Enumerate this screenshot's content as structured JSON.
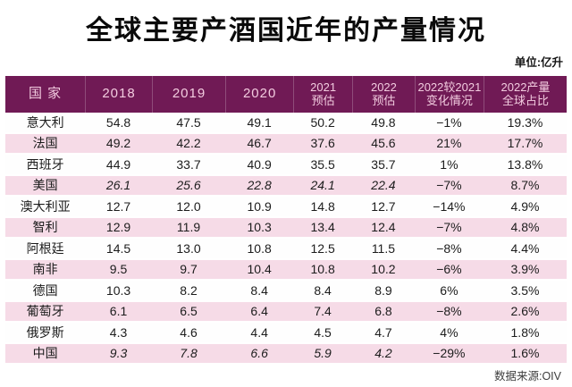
{
  "title": "全球主要产酒国近年的产量情况",
  "unit_label": "单位:亿升",
  "source_label": "数据来源:OIV",
  "colors": {
    "header_bg": "#701a55",
    "header_text": "#f2cbdf",
    "row_pink": "#f6dbe7",
    "row_white": "#fefefe",
    "text": "#1c1c1c"
  },
  "chart_data": {
    "type": "table",
    "title": "全球主要产酒国近年的产量情况",
    "unit": "亿升",
    "source": "OIV",
    "columns": [
      "国 家",
      "2018",
      "2019",
      "2020",
      "2021\n预估",
      "2022\n预估",
      "2022较2021\n变化情况",
      "2022产量\n全球占比"
    ],
    "rows": [
      {
        "country": "意大利",
        "values": [
          "54.8",
          "47.5",
          "49.1",
          "50.2",
          "49.8",
          "−1%",
          "19.3%"
        ],
        "italic": false
      },
      {
        "country": "法国",
        "values": [
          "49.2",
          "42.2",
          "46.7",
          "37.6",
          "45.6",
          "21%",
          "17.7%"
        ],
        "italic": false
      },
      {
        "country": "西班牙",
        "values": [
          "44.9",
          "33.7",
          "40.9",
          "35.5",
          "35.7",
          "1%",
          "13.8%"
        ],
        "italic": false
      },
      {
        "country": "美国",
        "values": [
          "26.1",
          "25.6",
          "22.8",
          "24.1",
          "22.4",
          "−7%",
          "8.7%"
        ],
        "italic": true
      },
      {
        "country": "澳大利亚",
        "values": [
          "12.7",
          "12.0",
          "10.9",
          "14.8",
          "12.7",
          "−14%",
          "4.9%"
        ],
        "italic": false
      },
      {
        "country": "智利",
        "values": [
          "12.9",
          "11.9",
          "10.3",
          "13.4",
          "12.4",
          "−7%",
          "4.8%"
        ],
        "italic": false
      },
      {
        "country": "阿根廷",
        "values": [
          "14.5",
          "13.0",
          "10.8",
          "12.5",
          "11.5",
          "−8%",
          "4.4%"
        ],
        "italic": false
      },
      {
        "country": "南非",
        "values": [
          "9.5",
          "9.7",
          "10.4",
          "10.8",
          "10.2",
          "−6%",
          "3.9%"
        ],
        "italic": false
      },
      {
        "country": "德国",
        "values": [
          "10.3",
          "8.2",
          "8.4",
          "8.4",
          "8.9",
          "6%",
          "3.5%"
        ],
        "italic": false
      },
      {
        "country": "葡萄牙",
        "values": [
          "6.1",
          "6.5",
          "6.4",
          "7.4",
          "6.8",
          "−8%",
          "2.6%"
        ],
        "italic": false
      },
      {
        "country": "俄罗斯",
        "values": [
          "4.3",
          "4.6",
          "4.4",
          "4.5",
          "4.7",
          "4%",
          "1.8%"
        ],
        "italic": false
      },
      {
        "country": "中国",
        "values": [
          "9.3",
          "7.8",
          "6.6",
          "5.9",
          "4.2",
          "−29%",
          "1.6%"
        ],
        "italic": true
      }
    ]
  }
}
